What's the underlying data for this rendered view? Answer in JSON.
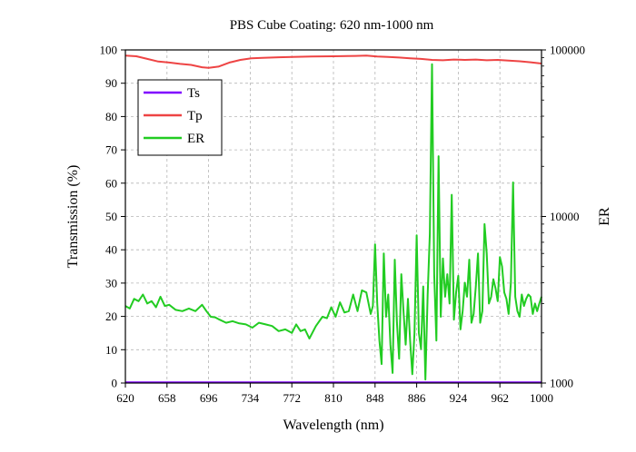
{
  "chart_data": {
    "type": "line",
    "title": "PBS Cube Coating: 620 nm-1000 nm",
    "xlabel": "Wavelength (nm)",
    "ylabel": "Transmission (%)",
    "y2label": "ER",
    "xlim": [
      620,
      1000
    ],
    "ylim": [
      0,
      100
    ],
    "y2lim": [
      1000,
      100000
    ],
    "y2scale": "log",
    "grid": true,
    "legend_position": "top-left",
    "x_ticks": [
      "620",
      "658",
      "696",
      "734",
      "772",
      "810",
      "848",
      "886",
      "924",
      "962",
      "1000"
    ],
    "y_ticks": [
      "0",
      "10",
      "20",
      "30",
      "40",
      "50",
      "60",
      "70",
      "80",
      "90",
      "100"
    ],
    "y2_ticks": [
      "1000",
      "10000",
      "100000"
    ],
    "series": [
      {
        "name": "Ts",
        "axis": "left",
        "color": "#8000ff",
        "x": [
          620,
          1000
        ],
        "y": [
          0.2,
          0.2
        ]
      },
      {
        "name": "Tp",
        "axis": "left",
        "color": "#ee4444",
        "x": [
          620,
          630,
          640,
          650,
          660,
          670,
          680,
          690,
          696,
          705,
          715,
          725,
          735,
          745,
          760,
          772,
          790,
          810,
          830,
          840,
          850,
          860,
          870,
          880,
          890,
          900,
          910,
          920,
          930,
          940,
          950,
          960,
          970,
          980,
          990,
          1000
        ],
        "y": [
          98.3,
          98.1,
          97.3,
          96.5,
          96.2,
          95.8,
          95.5,
          94.8,
          94.6,
          95.0,
          96.2,
          97.0,
          97.5,
          97.6,
          97.8,
          97.9,
          98.0,
          98.1,
          98.2,
          98.3,
          98.0,
          97.9,
          97.7,
          97.5,
          97.3,
          97.0,
          96.9,
          97.1,
          97.0,
          97.1,
          96.9,
          97.0,
          96.8,
          96.6,
          96.3,
          95.9
        ]
      },
      {
        "name": "ER",
        "axis": "right",
        "color": "#22cc22",
        "x": [
          620,
          624,
          628,
          632,
          636,
          640,
          644,
          648,
          652,
          656,
          660,
          666,
          672,
          678,
          684,
          690,
          694,
          698,
          702,
          706,
          712,
          718,
          724,
          730,
          736,
          742,
          748,
          754,
          760,
          766,
          772,
          776,
          780,
          784,
          788,
          794,
          800,
          804,
          808,
          812,
          816,
          820,
          824,
          828,
          832,
          836,
          840,
          844,
          846,
          848,
          850,
          852,
          854,
          856,
          858,
          860,
          862,
          864,
          866,
          868,
          870,
          872,
          874,
          876,
          878,
          880,
          882,
          884,
          886,
          888,
          890,
          892,
          894,
          896,
          898,
          900,
          902,
          904,
          906,
          908,
          910,
          912,
          914,
          916,
          918,
          920,
          922,
          924,
          926,
          928,
          930,
          932,
          934,
          936,
          938,
          940,
          942,
          944,
          946,
          948,
          950,
          952,
          954,
          956,
          958,
          960,
          962,
          964,
          966,
          968,
          970,
          972,
          974,
          976,
          978,
          980,
          982,
          984,
          986,
          988,
          990,
          992,
          994,
          996,
          998,
          1000
        ],
        "y": [
          2900,
          2800,
          3200,
          3100,
          3400,
          3000,
          3100,
          2850,
          3300,
          2900,
          2950,
          2750,
          2700,
          2800,
          2700,
          2950,
          2700,
          2500,
          2480,
          2400,
          2300,
          2350,
          2280,
          2250,
          2150,
          2300,
          2250,
          2200,
          2050,
          2100,
          2000,
          2250,
          2050,
          2100,
          1850,
          2200,
          2500,
          2450,
          2850,
          2500,
          3050,
          2650,
          2700,
          3400,
          2700,
          3600,
          3500,
          2600,
          2900,
          6800,
          3000,
          1800,
          1300,
          6000,
          2500,
          3400,
          1700,
          1150,
          5500,
          2300,
          1400,
          4500,
          2700,
          1700,
          3200,
          1800,
          1130,
          2000,
          7700,
          2000,
          1600,
          3800,
          1050,
          3400,
          7900,
          82000,
          4500,
          1800,
          23000,
          2500,
          5600,
          3300,
          4500,
          3000,
          13500,
          2400,
          3500,
          4400,
          2100,
          2700,
          4000,
          3300,
          5500,
          2300,
          2600,
          3800,
          6000,
          2300,
          2700,
          9000,
          6000,
          3000,
          3300,
          4200,
          3700,
          3100,
          5700,
          5000,
          3500,
          3200,
          2600,
          4000,
          16000,
          3300,
          2700,
          2500,
          3400,
          2900,
          3200,
          3400,
          3300,
          2600,
          3000,
          2700,
          3000,
          3300
        ]
      }
    ]
  }
}
